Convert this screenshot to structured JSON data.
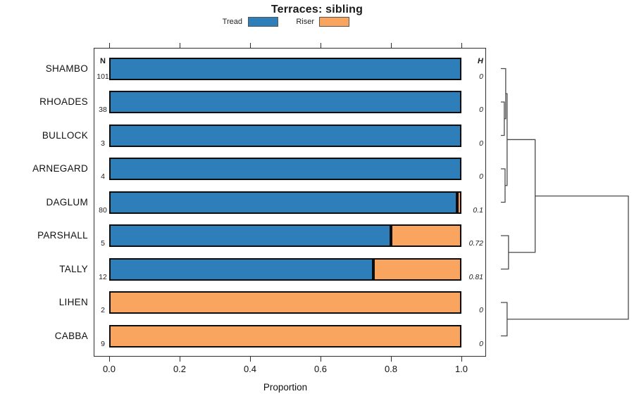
{
  "title": "Terraces: sibling",
  "legend": {
    "items": [
      {
        "label": "Tread",
        "color": "#2E7FB9"
      },
      {
        "label": "Riser",
        "color": "#F9A45F"
      }
    ]
  },
  "columns": {
    "n_header": "N",
    "h_header": "H"
  },
  "axis": {
    "xlabel": "Proportion"
  },
  "chart_data": {
    "type": "bar",
    "orientation": "horizontal",
    "stacked": true,
    "title": "Terraces: sibling",
    "xlabel": "Proportion",
    "xlim": [
      0,
      1.07
    ],
    "xticks": [
      0.0,
      0.2,
      0.4,
      0.6,
      0.8,
      1.0
    ],
    "xtick_labels": [
      "0.0",
      "0.2",
      "0.4",
      "0.6",
      "0.8",
      "1.0"
    ],
    "categories": [
      "SHAMBO",
      "RHOADES",
      "BULLOCK",
      "ARNEGARD",
      "DAGLUM",
      "PARSHALL",
      "TALLY",
      "LIHEN",
      "CABBA"
    ],
    "n_values": [
      101,
      38,
      3,
      4,
      80,
      5,
      12,
      2,
      9
    ],
    "h_values": [
      "0",
      "0",
      "0",
      "0",
      "0.1",
      "0.72",
      "0.81",
      "0",
      "0"
    ],
    "series": [
      {
        "name": "Tread",
        "color": "#2E7FB9",
        "values": [
          1.0,
          1.0,
          1.0,
          1.0,
          0.9875,
          0.8,
          0.75,
          0.0,
          0.0
        ]
      },
      {
        "name": "Riser",
        "color": "#F9A45F",
        "values": [
          0.0,
          0.0,
          0.0,
          0.0,
          0.0125,
          0.2,
          0.25,
          1.0,
          1.0
        ]
      }
    ],
    "dendrogram": {
      "note": "heights are relative 0..1 of dendrogram horizontal span",
      "leaves": [
        "SHAMBO",
        "RHOADES",
        "BULLOCK",
        "ARNEGARD",
        "DAGLUM",
        "PARSHALL",
        "TALLY",
        "LIHEN",
        "CABBA"
      ],
      "merges": [
        {
          "id": "m1",
          "a": "RHOADES",
          "b": "BULLOCK",
          "h": 0.027
        },
        {
          "id": "m2",
          "a": "SHAMBO",
          "b": "m1",
          "h": 0.038
        },
        {
          "id": "m3",
          "a": "ARNEGARD",
          "b": "DAGLUM",
          "h": 0.033
        },
        {
          "id": "m4",
          "a": "m2",
          "b": "m3",
          "h": 0.049
        },
        {
          "id": "m5",
          "a": "PARSHALL",
          "b": "TALLY",
          "h": 0.06
        },
        {
          "id": "m6",
          "a": "m4",
          "b": "m5",
          "h": 0.269
        },
        {
          "id": "m7",
          "a": "LIHEN",
          "b": "CABBA",
          "h": 0.049
        },
        {
          "id": "m8",
          "a": "m6",
          "b": "m7",
          "h": 1.0
        }
      ]
    }
  }
}
